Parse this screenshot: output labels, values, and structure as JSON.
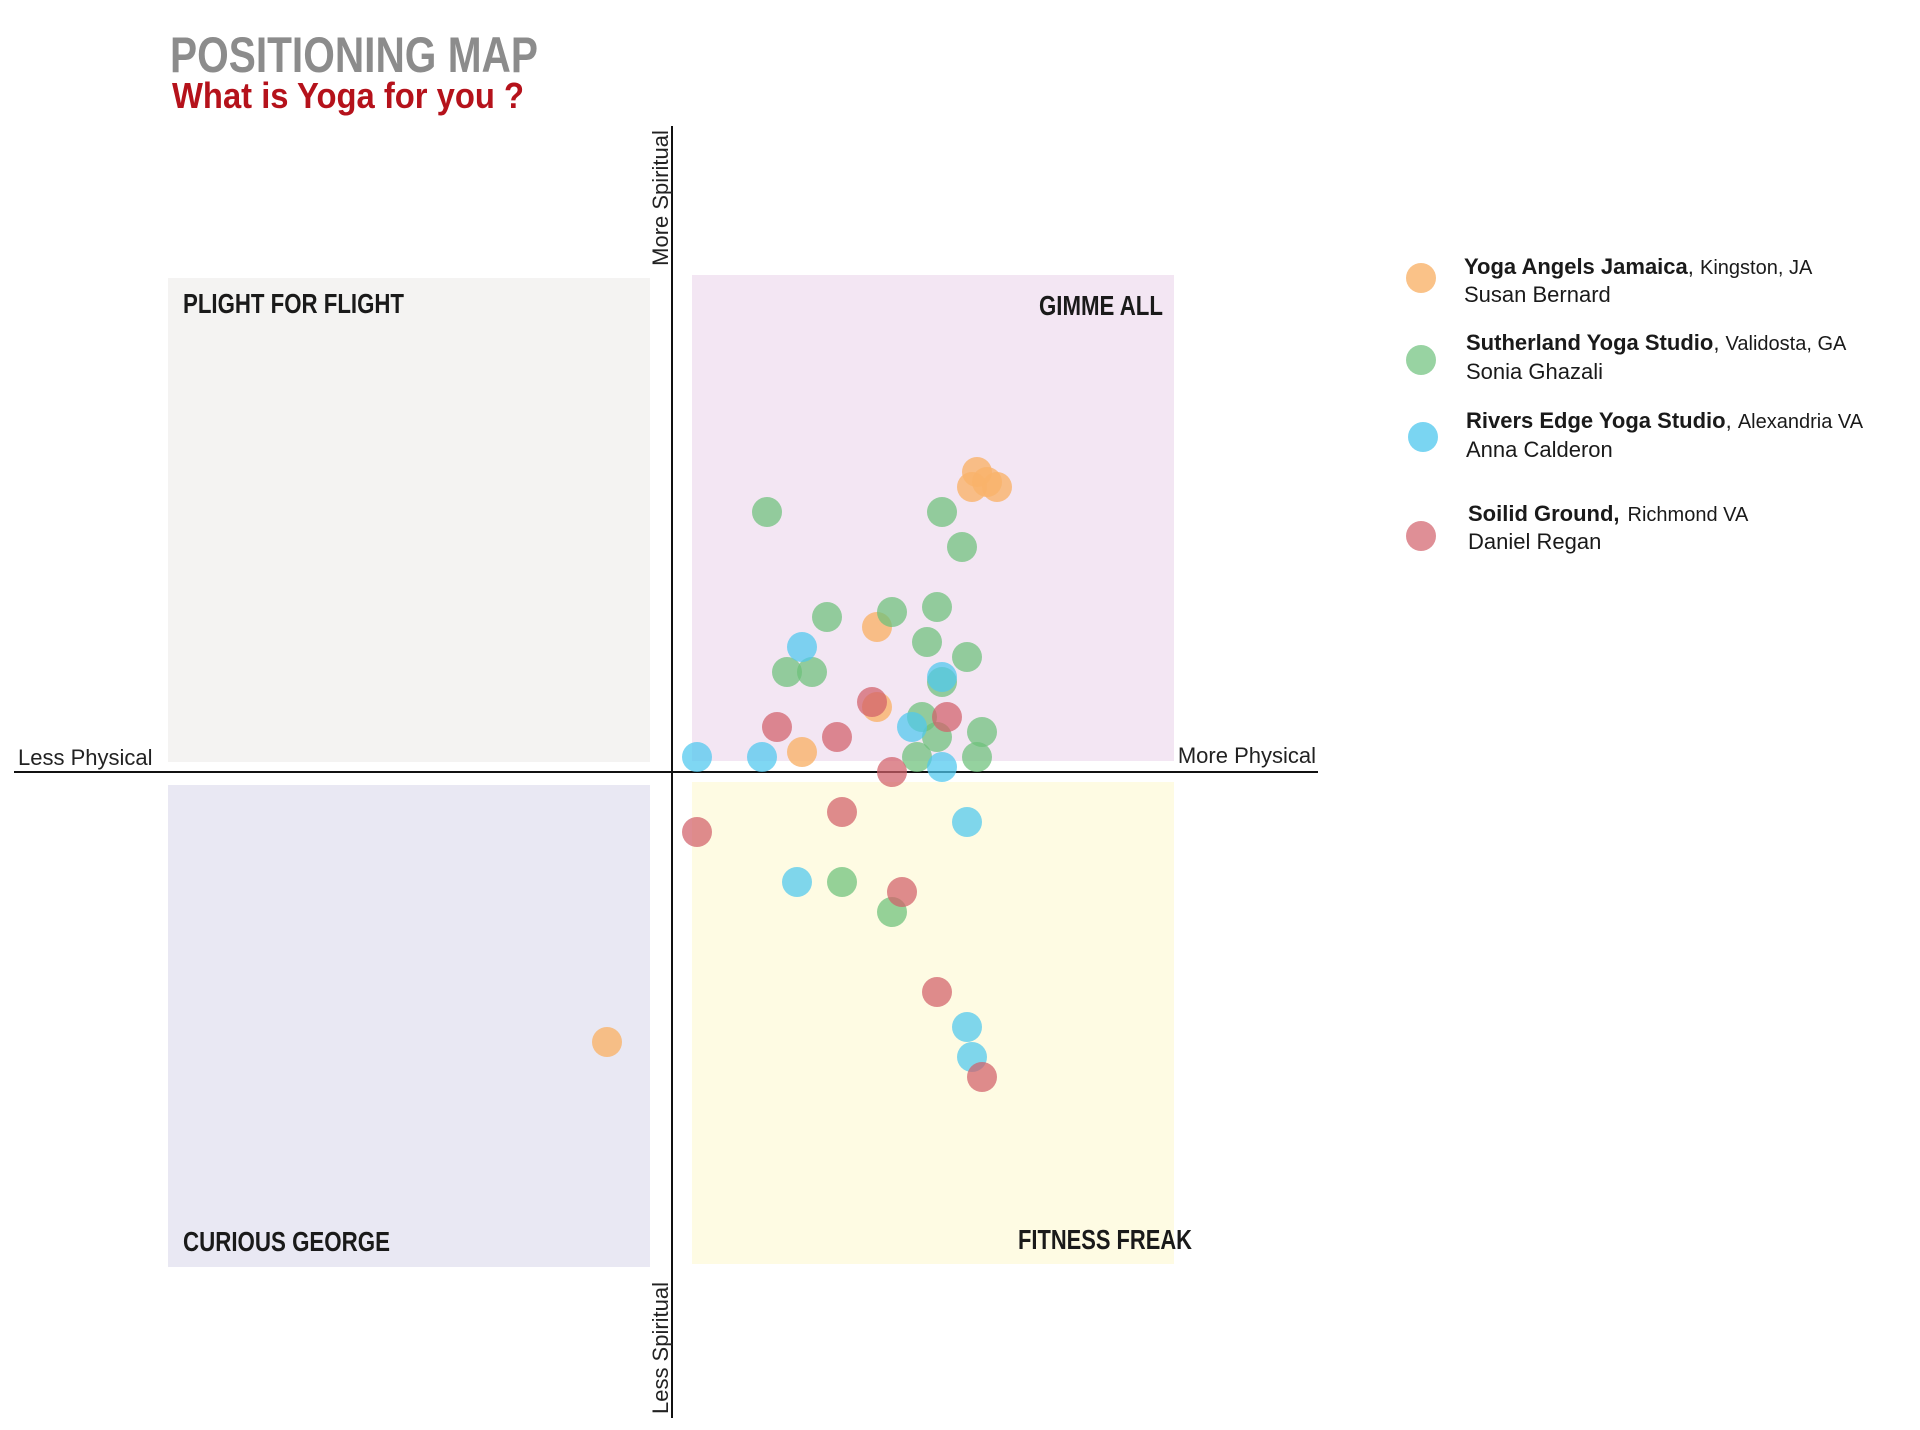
{
  "chart_data": {
    "type": "scatter",
    "title": "POSITIONING MAP",
    "subtitle": "What is Yoga for you ?",
    "xlabel_left": "Less Physical",
    "xlabel_right": "More Physical",
    "ylabel_top": "More Spiritual",
    "ylabel_bottom": "Less Spiritual",
    "xlim": [
      -10,
      10
    ],
    "ylim": [
      -10,
      10
    ],
    "grid": false,
    "legend_position": "top-right",
    "quadrants": [
      {
        "key": "tl",
        "label": "PLIGHT FOR FLIGHT",
        "color": "#f4f3f2"
      },
      {
        "key": "tr",
        "label": "GIMME ALL",
        "color": "#f3e6f3"
      },
      {
        "key": "bl",
        "label": "CURIOUS GEORGE",
        "color": "#e9e8f3"
      },
      {
        "key": "br",
        "label": "FITNESS FREAK",
        "color": "#fefbe3"
      }
    ],
    "series": [
      {
        "name": "Yoga Angels Jamaica",
        "location": "Kingston, JA",
        "person": "Susan Bernard",
        "color": "#f9b36a",
        "points": [
          [
            6.1,
            6.0
          ],
          [
            6.3,
            5.8
          ],
          [
            6.5,
            5.7
          ],
          [
            6.0,
            5.7
          ],
          [
            4.1,
            2.9
          ],
          [
            4.1,
            1.3
          ],
          [
            2.6,
            0.4
          ],
          [
            -1.3,
            -5.4
          ]
        ]
      },
      {
        "name": "Sutherland Yoga Studio",
        "location": "Validosta, GA",
        "person": "Sonia Ghazali",
        "color": "#6cc07a",
        "points": [
          [
            1.9,
            5.2
          ],
          [
            5.4,
            5.2
          ],
          [
            5.8,
            4.5
          ],
          [
            3.1,
            3.1
          ],
          [
            4.4,
            3.2
          ],
          [
            5.3,
            3.3
          ],
          [
            5.1,
            2.6
          ],
          [
            5.9,
            2.3
          ],
          [
            2.3,
            2.0
          ],
          [
            2.8,
            2.0
          ],
          [
            5.4,
            1.8
          ],
          [
            5.0,
            1.1
          ],
          [
            6.2,
            0.8
          ],
          [
            5.3,
            0.7
          ],
          [
            4.9,
            0.3
          ],
          [
            6.1,
            0.3
          ],
          [
            3.4,
            -2.2
          ],
          [
            4.4,
            -2.8
          ]
        ]
      },
      {
        "name": "Rivers Edge Yoga Studio",
        "location": "Alexandria VA",
        "person": "Anna Calderon",
        "color": "#4dc7ee",
        "points": [
          [
            2.6,
            2.5
          ],
          [
            5.4,
            1.9
          ],
          [
            4.8,
            0.9
          ],
          [
            0.5,
            0.3
          ],
          [
            1.8,
            0.3
          ],
          [
            5.4,
            0.1
          ],
          [
            5.9,
            -1.0
          ],
          [
            2.5,
            -2.2
          ],
          [
            5.9,
            -5.1
          ],
          [
            6.0,
            -5.7
          ]
        ]
      },
      {
        "name": "Soilid Ground,",
        "location": "Richmond VA",
        "person": "Daniel Regan",
        "color": "#d15f6a",
        "points": [
          [
            4.0,
            1.4
          ],
          [
            5.5,
            1.1
          ],
          [
            2.1,
            0.9
          ],
          [
            3.3,
            0.7
          ],
          [
            4.4,
            0.0
          ],
          [
            3.4,
            -0.8
          ],
          [
            0.5,
            -1.2
          ],
          [
            4.6,
            -2.4
          ],
          [
            5.3,
            -4.4
          ],
          [
            6.2,
            -6.1
          ]
        ]
      }
    ]
  }
}
